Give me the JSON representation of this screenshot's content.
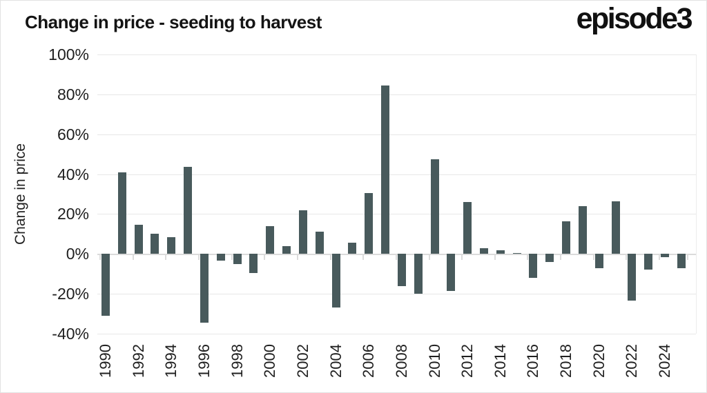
{
  "header": {
    "title": "Change in price - seeding to harvest",
    "logo": "episode3"
  },
  "chart_data": {
    "type": "bar",
    "title": "Change in price - seeding to harvest",
    "ylabel": "Change in price",
    "ylim": [
      -40,
      100
    ],
    "yticks": [
      100,
      80,
      60,
      40,
      20,
      0,
      -20,
      -40
    ],
    "ytick_suffix": "%",
    "grid": true,
    "legend": null,
    "x_label_every": 2,
    "bar_color": "#485a5c",
    "grid_color": "#e7e7e7",
    "zero_line_color": "#dbdbdb",
    "categories": [
      1990,
      1991,
      1992,
      1993,
      1994,
      1995,
      1996,
      1997,
      1998,
      1999,
      2000,
      2001,
      2002,
      2003,
      2004,
      2005,
      2006,
      2007,
      2008,
      2009,
      2010,
      2011,
      2012,
      2013,
      2014,
      2015,
      2016,
      2017,
      2018,
      2019,
      2020,
      2021,
      2022,
      2023,
      2024,
      2025
    ],
    "values": [
      -31,
      41,
      14.5,
      10,
      8.5,
      43.5,
      -34.5,
      -3.5,
      -5,
      -9.5,
      14,
      4,
      22,
      11,
      -27,
      5.5,
      30.5,
      84.5,
      -16,
      -20,
      47.5,
      -18.5,
      26,
      3,
      2,
      0.5,
      -12,
      -4,
      16.5,
      24,
      -7,
      26.5,
      -23.5,
      -8,
      -1.5,
      -7
    ]
  }
}
